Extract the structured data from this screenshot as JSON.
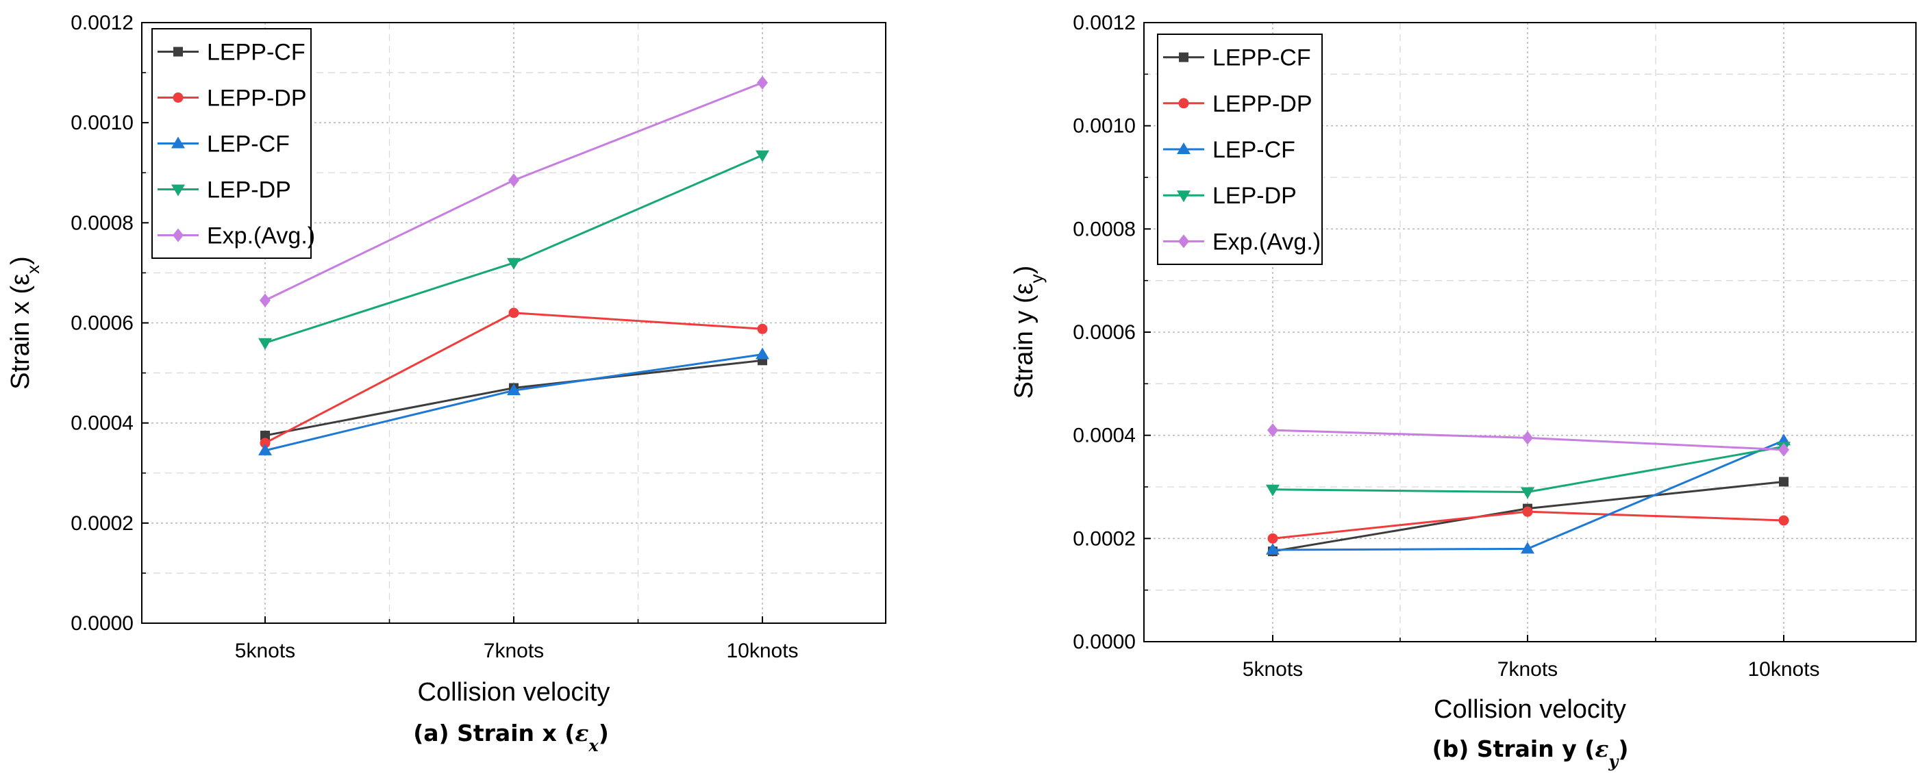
{
  "chart_data": [
    {
      "type": "line",
      "panel": "a",
      "caption": {
        "prefix": "(a) Strain x (",
        "symbol": "ε",
        "sub": "x",
        "suffix": ")"
      },
      "xlabel": "Collision velocity",
      "ylabel": {
        "text": "Strain x (",
        "symbol": "ε",
        "sub": "x",
        "suffix": ")"
      },
      "categories": [
        "5knots",
        "7knots",
        "10knots"
      ],
      "ylim": [
        0,
        0.0012
      ],
      "yticks": [
        "0.0000",
        "0.0002",
        "0.0004",
        "0.0006",
        "0.0008",
        "0.0010",
        "0.0012"
      ],
      "grid": true,
      "legend": "top-left",
      "series": [
        {
          "name": "LEPP-CF",
          "color": "#3d3d3d",
          "marker": "square",
          "values": [
            0.000375,
            0.00047,
            0.000525
          ]
        },
        {
          "name": "LEPP-DP",
          "color": "#f03c3c",
          "marker": "circle",
          "values": [
            0.00036,
            0.00062,
            0.000588
          ]
        },
        {
          "name": "LEP-CF",
          "color": "#1e78d6",
          "marker": "triangle-up",
          "values": [
            0.000345,
            0.000465,
            0.000537
          ]
        },
        {
          "name": "LEP-DP",
          "color": "#16a875",
          "marker": "triangle-down",
          "values": [
            0.00056,
            0.00072,
            0.000935
          ]
        },
        {
          "name": "Exp.(Avg.)",
          "color": "#c77ee0",
          "marker": "diamond",
          "values": [
            0.000645,
            0.000885,
            0.00108
          ]
        }
      ]
    },
    {
      "type": "line",
      "panel": "b",
      "caption": {
        "prefix": "(b) Strain y (",
        "symbol": "ε",
        "sub": "y",
        "suffix": ")"
      },
      "xlabel": "Collision velocity",
      "ylabel": {
        "text": "Strain y (",
        "symbol": "ε",
        "sub": "y",
        "suffix": ")"
      },
      "categories": [
        "5knots",
        "7knots",
        "10knots"
      ],
      "ylim": [
        0,
        0.0012
      ],
      "yticks": [
        "0.0000",
        "0.0002",
        "0.0004",
        "0.0006",
        "0.0008",
        "0.0010",
        "0.0012"
      ],
      "grid": true,
      "legend": "top-left",
      "series": [
        {
          "name": "LEPP-CF",
          "color": "#3d3d3d",
          "marker": "square",
          "values": [
            0.000175,
            0.000258,
            0.00031
          ]
        },
        {
          "name": "LEPP-DP",
          "color": "#f03c3c",
          "marker": "circle",
          "values": [
            0.0002,
            0.000252,
            0.000235
          ]
        },
        {
          "name": "LEP-CF",
          "color": "#1e78d6",
          "marker": "triangle-up",
          "values": [
            0.000178,
            0.00018,
            0.00039
          ]
        },
        {
          "name": "LEP-DP",
          "color": "#16a875",
          "marker": "triangle-down",
          "values": [
            0.000295,
            0.00029,
            0.000378
          ]
        },
        {
          "name": "Exp.(Avg.)",
          "color": "#c77ee0",
          "marker": "diamond",
          "values": [
            0.00041,
            0.000395,
            0.000372
          ]
        }
      ]
    }
  ]
}
